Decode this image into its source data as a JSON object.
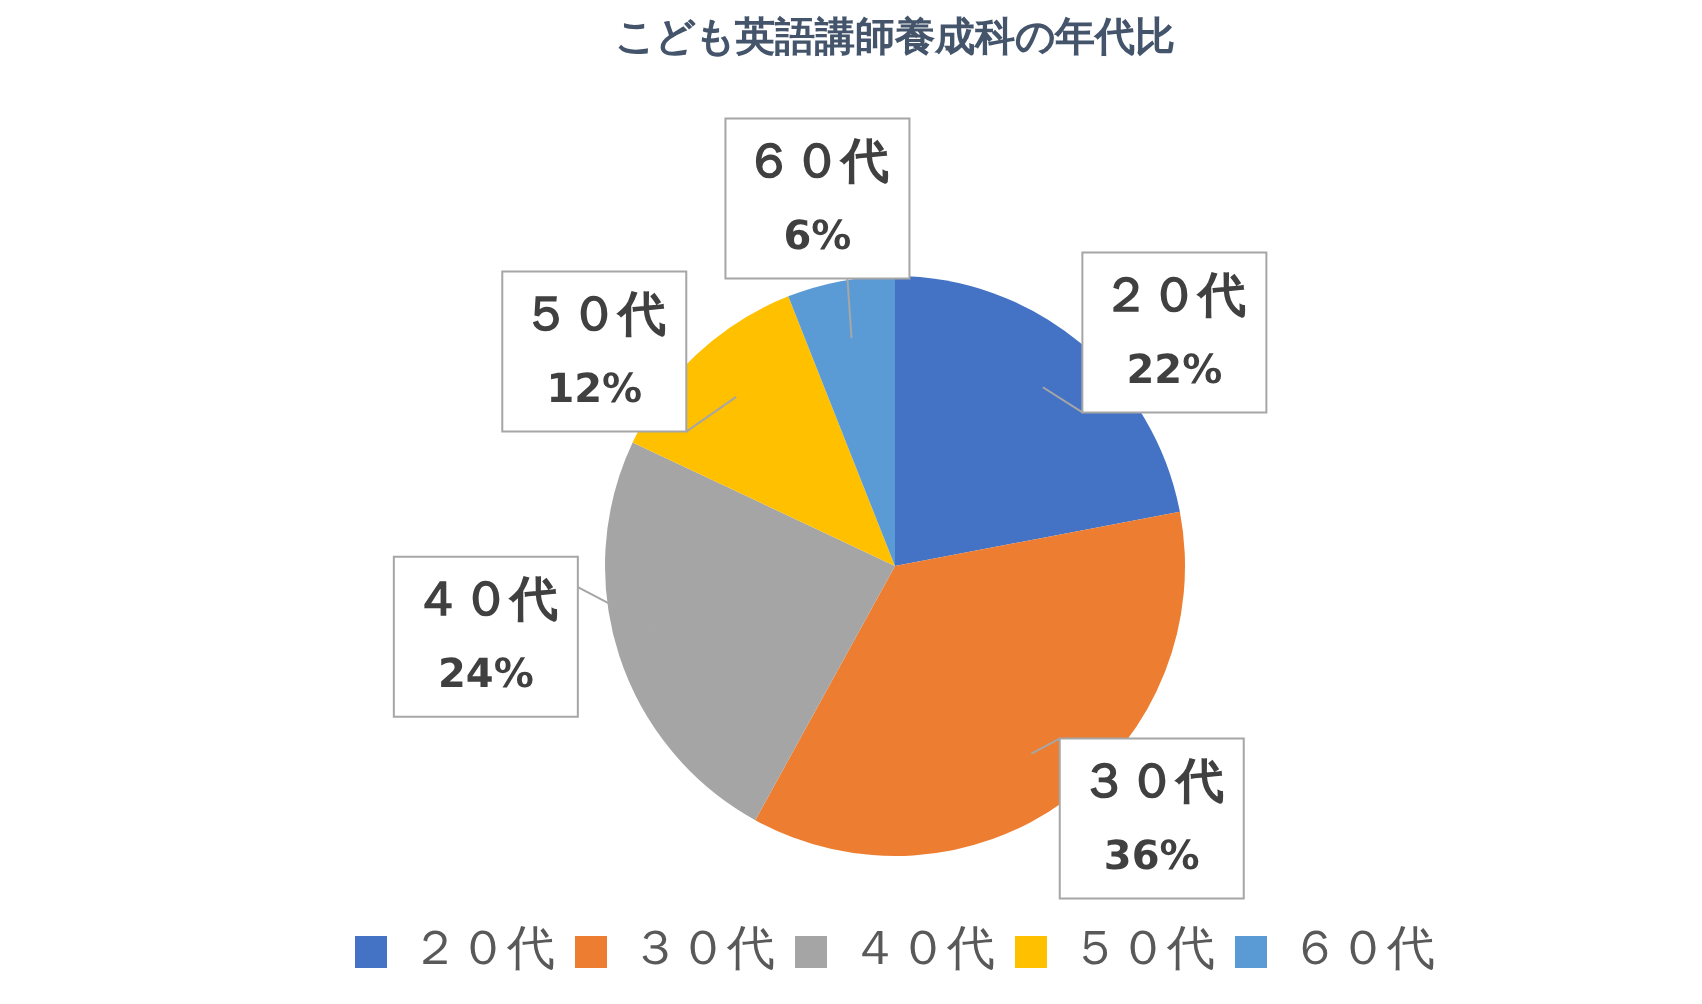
{
  "chart_data": {
    "type": "pie",
    "title": "こども英語講師養成科の年代比",
    "categories": [
      "２０代",
      "３０代",
      "４０代",
      "５０代",
      "６０代"
    ],
    "values": [
      22,
      36,
      24,
      12,
      6
    ],
    "colors": [
      "#4472c4",
      "#ed7d31",
      "#a5a5a5",
      "#ffc000",
      "#5b9bd5"
    ],
    "value_labels": [
      "22%",
      "36%",
      "24%",
      "12%",
      "6%"
    ],
    "legend": "bottom"
  }
}
